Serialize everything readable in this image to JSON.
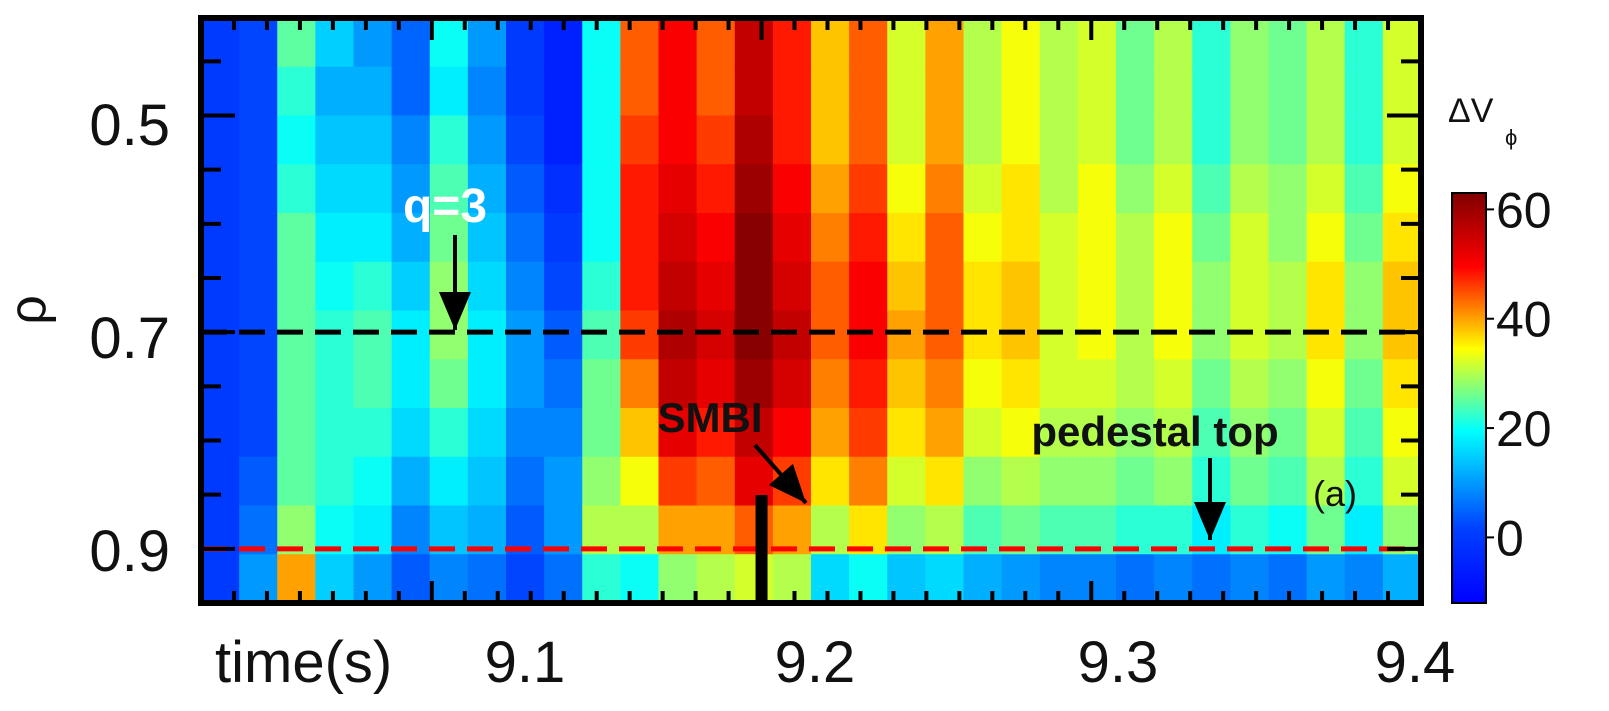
{
  "chart_data": {
    "type": "heatmap",
    "title": "",
    "xlabel": "time(s)",
    "ylabel": "ρ",
    "xlim": [
      9.03,
      9.4
    ],
    "ylim": [
      0.41,
      0.95
    ],
    "y_inverted": true,
    "x_ticks": [
      "9.1",
      "9.2",
      "9.3",
      "9.4"
    ],
    "x_tick_values": [
      9.1,
      9.2,
      9.3,
      9.4
    ],
    "y_ticks": [
      "0.5",
      "0.7",
      "0.9"
    ],
    "y_tick_values": [
      0.5,
      0.7,
      0.9
    ],
    "colorbar": {
      "label_main": "ΔV",
      "label_sub": "ϕ",
      "range": [
        -12,
        63
      ],
      "ticks": [
        "60",
        "40",
        "20",
        "0"
      ],
      "tick_values": [
        60,
        40,
        20,
        0
      ],
      "colormap": "jet",
      "colors": [
        "#00008f",
        "#0000ff",
        "#00ffff",
        "#ffff00",
        "#ff0000",
        "#800000"
      ]
    },
    "heatmap_values": [
      [
        0,
        0,
        0,
        0,
        0,
        0,
        0,
        0,
        0,
        0,
        0,
        0
      ],
      [
        2,
        2,
        2,
        2,
        2,
        2,
        2,
        2,
        2,
        4,
        6,
        10
      ],
      [
        25,
        22,
        20,
        22,
        25,
        25,
        25,
        25,
        25,
        25,
        28,
        40
      ],
      [
        15,
        12,
        14,
        16,
        18,
        20,
        22,
        22,
        22,
        22,
        20,
        15
      ],
      [
        10,
        12,
        14,
        16,
        18,
        22,
        24,
        24,
        22,
        20,
        18,
        10
      ],
      [
        5,
        5,
        8,
        10,
        12,
        15,
        18,
        18,
        16,
        12,
        8,
        4
      ],
      [
        20,
        18,
        22,
        24,
        26,
        28,
        28,
        26,
        22,
        18,
        14,
        8
      ],
      [
        10,
        8,
        10,
        12,
        14,
        16,
        18,
        18,
        16,
        14,
        12,
        6
      ],
      [
        0,
        0,
        2,
        4,
        6,
        8,
        10,
        10,
        8,
        6,
        4,
        2
      ],
      [
        -5,
        -5,
        -5,
        -2,
        0,
        2,
        4,
        6,
        8,
        10,
        10,
        6
      ],
      [
        20,
        20,
        20,
        20,
        20,
        22,
        24,
        26,
        26,
        28,
        30,
        22
      ],
      [
        44,
        44,
        46,
        48,
        48,
        48,
        46,
        42,
        38,
        34,
        30,
        20
      ],
      [
        50,
        50,
        50,
        52,
        54,
        56,
        58,
        56,
        52,
        46,
        40,
        28
      ],
      [
        44,
        44,
        46,
        48,
        50,
        52,
        54,
        52,
        48,
        44,
        40,
        30
      ],
      [
        56,
        56,
        58,
        60,
        62,
        62,
        62,
        60,
        56,
        52,
        44,
        32
      ],
      [
        48,
        48,
        48,
        50,
        52,
        54,
        56,
        54,
        50,
        46,
        40,
        30
      ],
      [
        38,
        38,
        38,
        40,
        42,
        44,
        44,
        42,
        40,
        36,
        30,
        16
      ],
      [
        44,
        44,
        44,
        46,
        48,
        50,
        50,
        48,
        46,
        42,
        36,
        20
      ],
      [
        32,
        32,
        32,
        34,
        36,
        38,
        40,
        38,
        36,
        32,
        28,
        14
      ],
      [
        40,
        40,
        40,
        42,
        44,
        44,
        44,
        42,
        40,
        36,
        30,
        16
      ],
      [
        30,
        30,
        30,
        32,
        34,
        36,
        36,
        34,
        32,
        28,
        24,
        12
      ],
      [
        34,
        34,
        34,
        36,
        36,
        38,
        38,
        36,
        34,
        30,
        26,
        10
      ],
      [
        30,
        30,
        30,
        30,
        32,
        32,
        32,
        32,
        30,
        28,
        24,
        8
      ],
      [
        32,
        32,
        32,
        34,
        34,
        34,
        34,
        32,
        30,
        28,
        24,
        8
      ],
      [
        26,
        26,
        26,
        28,
        30,
        30,
        30,
        30,
        28,
        26,
        22,
        6
      ],
      [
        30,
        30,
        30,
        32,
        34,
        34,
        34,
        32,
        30,
        28,
        22,
        8
      ],
      [
        22,
        22,
        22,
        24,
        26,
        28,
        28,
        26,
        24,
        22,
        18,
        6
      ],
      [
        28,
        28,
        28,
        30,
        32,
        32,
        32,
        30,
        28,
        26,
        22,
        8
      ],
      [
        26,
        26,
        26,
        28,
        28,
        30,
        30,
        28,
        26,
        24,
        20,
        6
      ],
      [
        30,
        30,
        30,
        32,
        34,
        36,
        36,
        34,
        32,
        30,
        26,
        10
      ],
      [
        22,
        22,
        22,
        24,
        26,
        28,
        28,
        26,
        24,
        22,
        18,
        8
      ],
      [
        32,
        32,
        32,
        34,
        36,
        38,
        38,
        36,
        34,
        32,
        28,
        12
      ]
    ],
    "reference_lines": [
      {
        "rho": 0.7,
        "color": "#000000",
        "style": "dashed"
      },
      {
        "rho": 0.9,
        "color": "#ff0000",
        "style": "dashed"
      }
    ],
    "smbi_line_time": 9.2,
    "annotations": {
      "q3": "q=3",
      "smbi": "SMBI",
      "pedestal": "pedestal top",
      "panel": "(a)"
    }
  }
}
